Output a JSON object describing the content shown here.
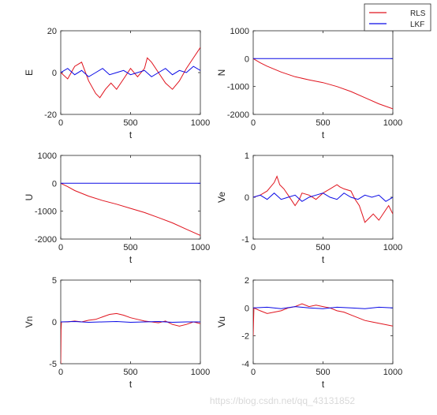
{
  "colors": {
    "RLS": "#e0141e",
    "LKF": "#0a0ae6",
    "axis": "#262626",
    "background": "#ffffff"
  },
  "legend": {
    "placement": "top-right",
    "entries": [
      "RLS",
      "LKF"
    ]
  },
  "watermark": "https://blog.csdn.net/qq_43131852",
  "chart_data": [
    {
      "type": "line",
      "ylabel": "E",
      "xlabel": "t",
      "xlim": [
        0,
        1000
      ],
      "ylim": [
        -20,
        20
      ],
      "xticks": [
        0,
        500,
        1000
      ],
      "yticks": [
        -20,
        0,
        20
      ],
      "series": [
        {
          "name": "RLS",
          "x": [
            0,
            50,
            100,
            150,
            200,
            250,
            280,
            320,
            360,
            400,
            450,
            500,
            550,
            600,
            620,
            650,
            700,
            750,
            800,
            850,
            900,
            950,
            1000
          ],
          "y": [
            0,
            -3,
            3,
            5,
            -4,
            -10,
            -12,
            -8,
            -5,
            -8,
            -3,
            2,
            -2,
            2,
            7,
            5,
            0,
            -5,
            -8,
            -4,
            2,
            7,
            12
          ]
        },
        {
          "name": "LKF",
          "x": [
            0,
            50,
            100,
            150,
            200,
            250,
            300,
            350,
            400,
            450,
            500,
            550,
            600,
            650,
            700,
            750,
            800,
            850,
            900,
            950,
            1000
          ],
          "y": [
            0,
            2,
            -1,
            1,
            -2,
            0,
            2,
            -1,
            0,
            1,
            -1,
            0,
            1,
            -2,
            0,
            2,
            -1,
            1,
            0,
            3,
            1
          ]
        }
      ]
    },
    {
      "type": "line",
      "ylabel": "N",
      "xlabel": "t",
      "xlim": [
        0,
        1000
      ],
      "ylim": [
        -2000,
        1000
      ],
      "xticks": [
        0,
        500,
        1000
      ],
      "yticks": [
        -2000,
        -1000,
        0,
        1000
      ],
      "series": [
        {
          "name": "RLS",
          "x": [
            0,
            50,
            100,
            200,
            300,
            400,
            500,
            600,
            700,
            800,
            900,
            1000
          ],
          "y": [
            0,
            -150,
            -270,
            -480,
            -650,
            -760,
            -860,
            -1000,
            -1180,
            -1400,
            -1620,
            -1800
          ]
        },
        {
          "name": "LKF",
          "x": [
            0,
            1000
          ],
          "y": [
            0,
            0
          ]
        }
      ]
    },
    {
      "type": "line",
      "ylabel": "U",
      "xlabel": "t",
      "xlim": [
        0,
        1000
      ],
      "ylim": [
        -2000,
        1000
      ],
      "xticks": [
        0,
        500,
        1000
      ],
      "yticks": [
        -2000,
        -1000,
        0,
        1000
      ],
      "series": [
        {
          "name": "RLS",
          "x": [
            0,
            50,
            100,
            200,
            300,
            400,
            500,
            600,
            700,
            800,
            900,
            1000
          ],
          "y": [
            0,
            -120,
            -260,
            -460,
            -620,
            -750,
            -900,
            -1050,
            -1230,
            -1420,
            -1650,
            -1870
          ]
        },
        {
          "name": "LKF",
          "x": [
            0,
            1000
          ],
          "y": [
            0,
            0
          ]
        }
      ]
    },
    {
      "type": "line",
      "ylabel": "Ve",
      "xlabel": "t",
      "xlim": [
        0,
        1000
      ],
      "ylim": [
        -1,
        1
      ],
      "xticks": [
        0,
        500,
        1000
      ],
      "yticks": [
        -1,
        0,
        1
      ],
      "series": [
        {
          "name": "RLS",
          "x": [
            0,
            50,
            100,
            150,
            170,
            190,
            220,
            250,
            280,
            300,
            330,
            350,
            400,
            450,
            500,
            550,
            600,
            620,
            650,
            700,
            730,
            760,
            780,
            800,
            830,
            860,
            900,
            950,
            970,
            1000
          ],
          "y": [
            0,
            0.05,
            0.15,
            0.35,
            0.5,
            0.3,
            0.2,
            0.05,
            -0.1,
            -0.2,
            -0.05,
            0.1,
            0.05,
            -0.05,
            0.1,
            0.2,
            0.3,
            0.25,
            0.2,
            0.15,
            -0.05,
            -0.2,
            -0.4,
            -0.6,
            -0.5,
            -0.4,
            -0.55,
            -0.3,
            -0.2,
            -0.4
          ]
        },
        {
          "name": "LKF",
          "x": [
            0,
            50,
            100,
            150,
            200,
            250,
            300,
            350,
            400,
            450,
            500,
            550,
            600,
            650,
            700,
            750,
            800,
            850,
            900,
            950,
            1000
          ],
          "y": [
            0,
            0.05,
            -0.05,
            0.1,
            -0.05,
            0,
            0.05,
            -0.1,
            0,
            0.05,
            0.1,
            0,
            -0.05,
            0.1,
            0,
            -0.05,
            0.05,
            0,
            0.05,
            -0.1,
            0
          ]
        }
      ]
    },
    {
      "type": "line",
      "ylabel": "Vn",
      "xlabel": "t",
      "xlim": [
        0,
        1000
      ],
      "ylim": [
        -5,
        5
      ],
      "xticks": [
        0,
        500,
        1000
      ],
      "yticks": [
        -5,
        0,
        5
      ],
      "series": [
        {
          "name": "RLS",
          "x": [
            0,
            2,
            5,
            50,
            100,
            150,
            200,
            250,
            300,
            350,
            400,
            450,
            500,
            550,
            600,
            650,
            700,
            750,
            800,
            850,
            900,
            950,
            1000
          ],
          "y": [
            -5,
            -1,
            0,
            0,
            0.1,
            0,
            0.2,
            0.3,
            0.6,
            0.9,
            1.0,
            0.8,
            0.5,
            0.3,
            0.1,
            0,
            -0.1,
            0.1,
            -0.3,
            -0.5,
            -0.3,
            0,
            -0.2
          ]
        },
        {
          "name": "LKF",
          "x": [
            0,
            100,
            200,
            300,
            400,
            500,
            600,
            700,
            800,
            900,
            1000
          ],
          "y": [
            0,
            0.05,
            -0.05,
            0,
            0.05,
            -0.05,
            0,
            0.05,
            -0.05,
            0,
            0
          ]
        }
      ]
    },
    {
      "type": "line",
      "ylabel": "Vu",
      "xlabel": "t",
      "xlim": [
        0,
        1000
      ],
      "ylim": [
        -4,
        2
      ],
      "xticks": [
        0,
        500,
        1000
      ],
      "yticks": [
        -4,
        -2,
        0,
        2
      ],
      "series": [
        {
          "name": "RLS",
          "x": [
            0,
            2,
            5,
            50,
            100,
            150,
            200,
            250,
            300,
            350,
            400,
            450,
            500,
            550,
            600,
            650,
            700,
            750,
            800,
            850,
            900,
            950,
            1000
          ],
          "y": [
            -2,
            -1,
            0,
            -0.2,
            -0.4,
            -0.3,
            -0.2,
            0,
            0.1,
            0.3,
            0.1,
            0.2,
            0.1,
            0,
            -0.2,
            -0.3,
            -0.5,
            -0.7,
            -0.9,
            -1.0,
            -1.1,
            -1.2,
            -1.3
          ]
        },
        {
          "name": "LKF",
          "x": [
            0,
            100,
            200,
            300,
            400,
            500,
            600,
            700,
            800,
            900,
            1000
          ],
          "y": [
            0,
            0.05,
            -0.05,
            0.1,
            0,
            -0.05,
            0.05,
            0,
            -0.05,
            0.05,
            0
          ]
        }
      ]
    }
  ]
}
